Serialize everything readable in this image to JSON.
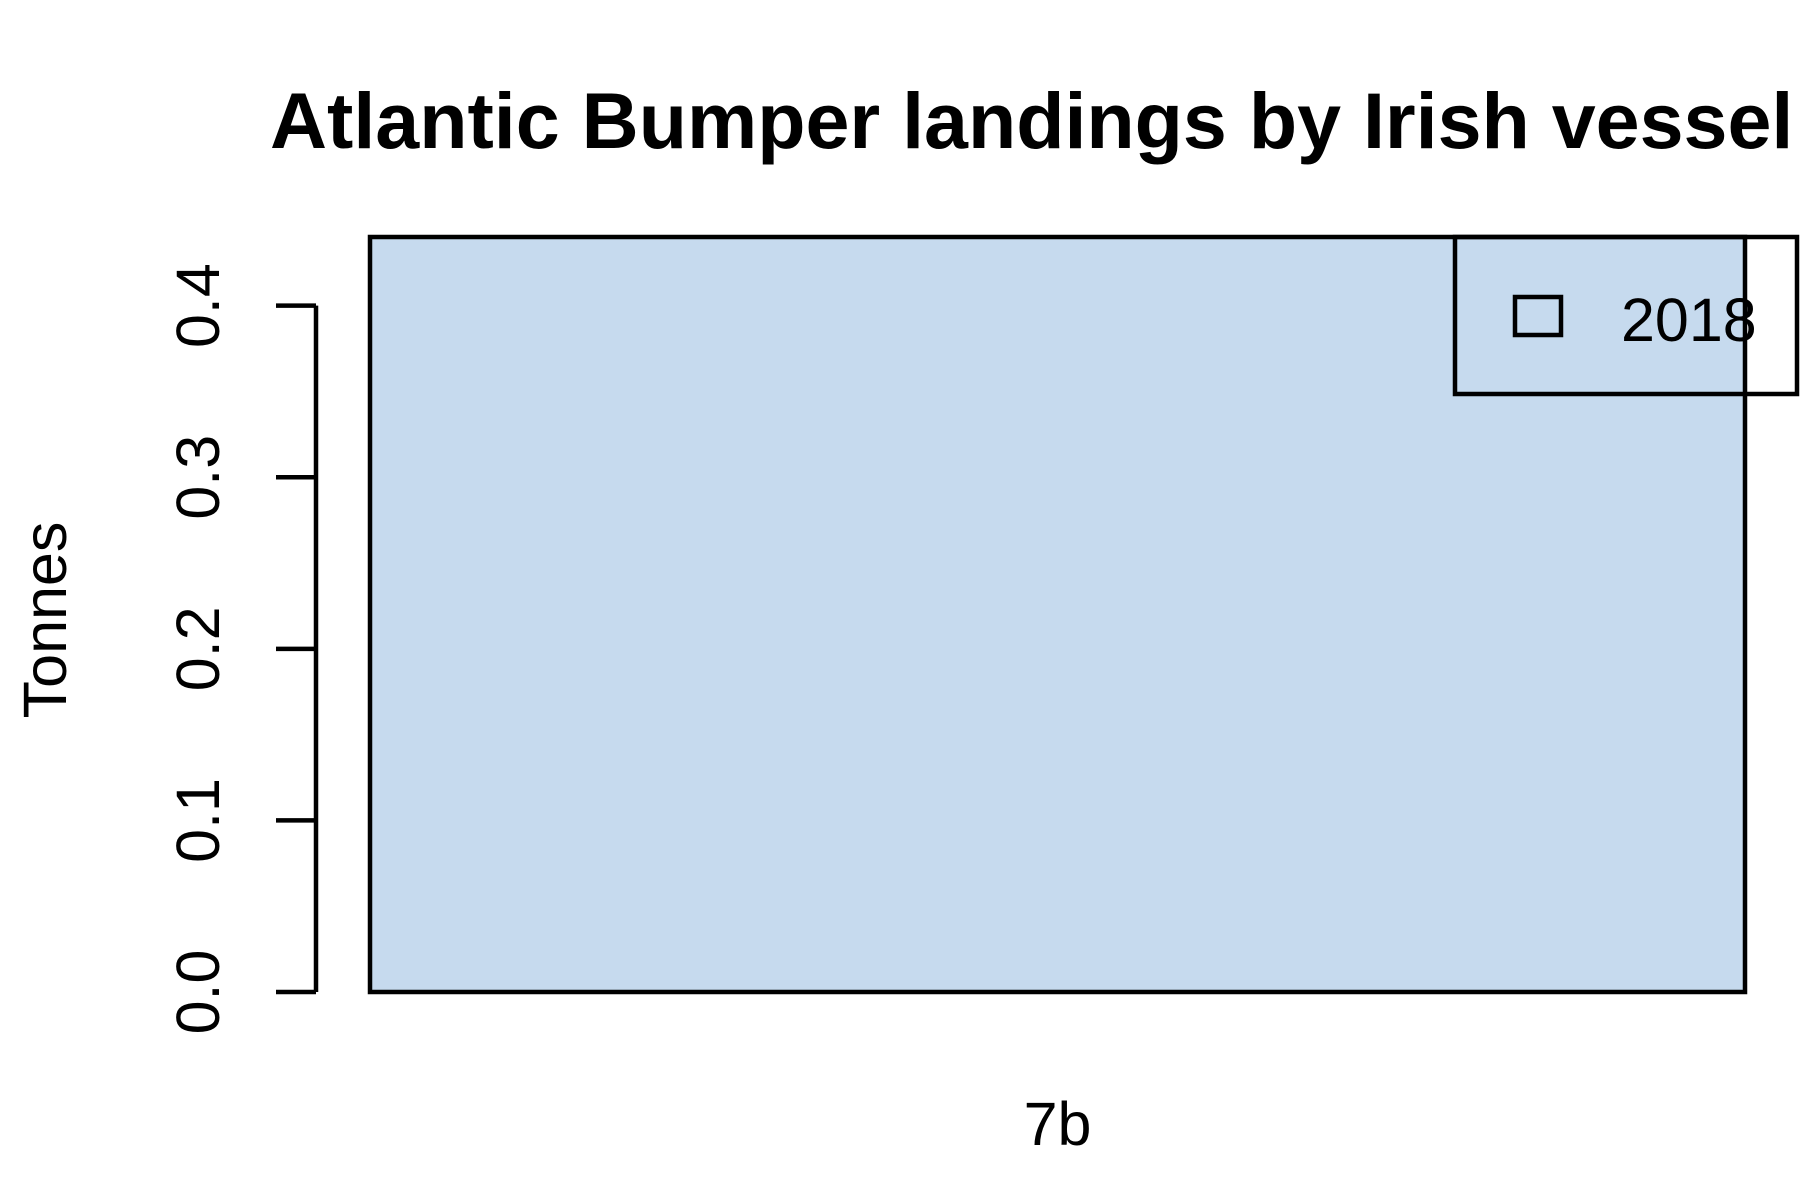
{
  "chart_data": {
    "type": "bar",
    "title": "Atlantic Bumper landings by Irish vessel",
    "xlabel": "",
    "ylabel": "Tonnes",
    "categories": [
      "7b"
    ],
    "series": [
      {
        "name": "2018",
        "values": [
          0.44
        ]
      }
    ],
    "ylim": [
      0,
      0.44
    ],
    "yticks": [
      0.0,
      0.1,
      0.2,
      0.3,
      0.4
    ],
    "ytick_labels": [
      "0.0",
      "0.1",
      "0.2",
      "0.3",
      "0.4"
    ],
    "grid": false,
    "legend_position": "top-right",
    "bar_color": "#c6daee"
  }
}
